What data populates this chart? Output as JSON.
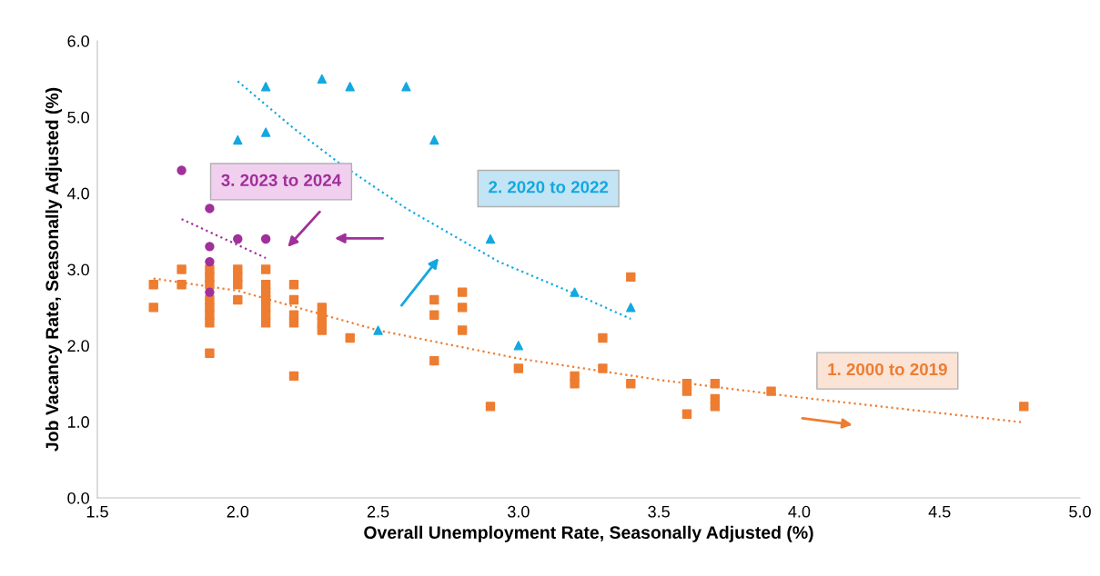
{
  "chart_data": {
    "type": "scatter",
    "xlabel": "Overall Unemployment Rate, Seasonally Adjusted (%)",
    "ylabel": "Job Vacancy Rate, Seasonally Adjusted (%)",
    "xlim": [
      1.5,
      5.0
    ],
    "ylim": [
      0.0,
      6.0
    ],
    "xticks": [
      1.5,
      {
        "value": 2,
        "label": "2.0"
      },
      2.5,
      {
        "value": 3,
        "label": "3.0"
      },
      3.5,
      {
        "value": 4,
        "label": "4.0"
      },
      4.5,
      {
        "value": 5,
        "label": "5.0"
      }
    ],
    "yticks": [
      {
        "value": 0,
        "label": "0.0"
      },
      {
        "value": 1,
        "label": "1.0"
      },
      {
        "value": 2,
        "label": "2.0"
      },
      {
        "value": 3,
        "label": "3.0"
      },
      {
        "value": 4,
        "label": "4.0"
      },
      {
        "value": 5,
        "label": "5.0"
      },
      {
        "value": 6,
        "label": "6.0"
      }
    ],
    "grid": false,
    "legend": false,
    "series": [
      {
        "name": "1. 2000 to 2019",
        "marker": "square",
        "color": "#ed7d31",
        "x": [
          1.7,
          1.7,
          1.8,
          1.8,
          1.9,
          1.9,
          1.9,
          1.9,
          1.9,
          1.9,
          1.9,
          1.9,
          2.0,
          2.0,
          2.0,
          2.0,
          2.1,
          2.1,
          2.1,
          2.1,
          2.1,
          2.1,
          2.1,
          2.2,
          2.2,
          2.2,
          2.2,
          2.2,
          2.3,
          2.3,
          2.3,
          2.3,
          2.4,
          2.7,
          2.7,
          2.7,
          2.8,
          2.8,
          2.8,
          2.9,
          3.0,
          3.2,
          3.2,
          3.3,
          3.3,
          3.4,
          3.4,
          3.6,
          3.6,
          3.6,
          3.7,
          3.7,
          3.7,
          3.9,
          4.8
        ],
        "values": [
          2.8,
          2.5,
          3.0,
          2.8,
          3.0,
          2.9,
          2.8,
          2.6,
          2.5,
          2.4,
          2.3,
          1.9,
          3.0,
          2.9,
          2.8,
          2.6,
          3.0,
          2.8,
          2.7,
          2.6,
          2.5,
          2.4,
          2.3,
          2.8,
          2.6,
          2.4,
          2.3,
          1.6,
          2.5,
          2.4,
          2.3,
          2.2,
          2.1,
          2.6,
          2.4,
          1.8,
          2.7,
          2.5,
          2.2,
          1.2,
          1.7,
          1.6,
          1.5,
          2.1,
          1.7,
          2.9,
          1.5,
          1.5,
          1.4,
          1.1,
          1.5,
          1.3,
          1.2,
          1.4,
          1.2
        ]
      },
      {
        "name": "2. 2020 to 2022",
        "marker": "triangle",
        "color": "#13a8e0",
        "x": [
          2.0,
          2.1,
          2.1,
          2.3,
          2.4,
          2.6,
          2.7,
          2.9,
          3.2,
          3.4,
          3.0,
          2.5
        ],
        "values": [
          4.7,
          5.4,
          4.8,
          5.5,
          5.4,
          5.4,
          4.7,
          3.4,
          2.7,
          2.5,
          2.0,
          2.2
        ]
      },
      {
        "name": "3. 2023 to 2024",
        "marker": "circle",
        "color": "#a0309a",
        "x": [
          1.8,
          1.9,
          1.9,
          1.9,
          1.9,
          2.0,
          2.1
        ],
        "values": [
          4.3,
          3.8,
          3.3,
          3.1,
          2.7,
          3.4,
          3.4
        ]
      },
      {
        "type": "line",
        "line_style": "dotted",
        "color": "#ed7d31",
        "x": [
          1.7,
          2.0,
          2.5,
          3.0,
          3.5,
          4.0,
          4.8
        ],
        "values": [
          2.88,
          2.72,
          2.2,
          1.83,
          1.55,
          1.32,
          0.99
        ]
      },
      {
        "type": "line",
        "line_style": "dotted",
        "color": "#13a8e0",
        "x": [
          2.0,
          2.2,
          2.36,
          2.6,
          2.93,
          3.2,
          3.4
        ],
        "values": [
          5.47,
          4.85,
          4.4,
          3.8,
          3.1,
          2.68,
          2.35
        ]
      },
      {
        "type": "line",
        "line_style": "dotted",
        "color": "#a0309a",
        "x": [
          1.8,
          2.1
        ],
        "values": [
          3.66,
          3.15
        ]
      }
    ]
  }
}
